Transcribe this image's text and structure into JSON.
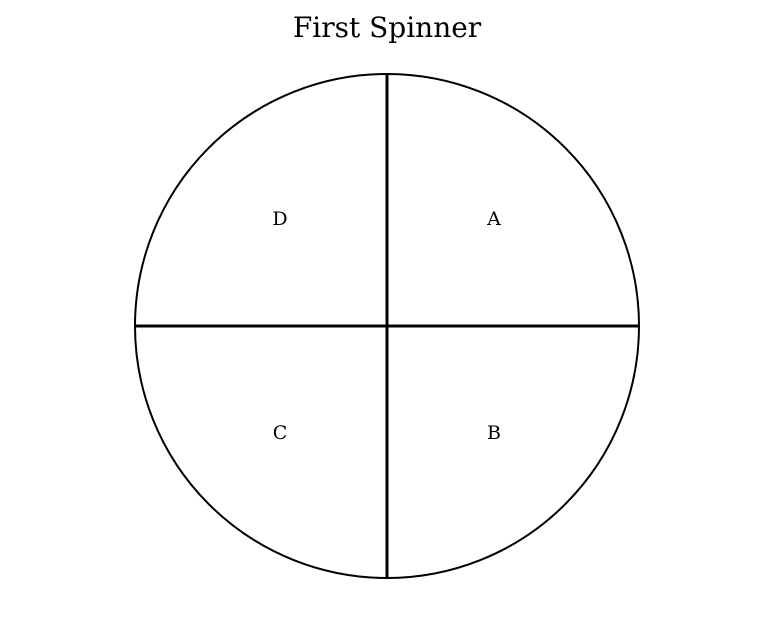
{
  "title": "First Spinner",
  "spinner": {
    "sectors": [
      {
        "label": "A",
        "quadrant": "top-right"
      },
      {
        "label": "B",
        "quadrant": "bottom-right"
      },
      {
        "label": "C",
        "quadrant": "bottom-left"
      },
      {
        "label": "D",
        "quadrant": "top-left"
      }
    ]
  },
  "colors": {
    "stroke": "#000000",
    "background": "#ffffff"
  }
}
